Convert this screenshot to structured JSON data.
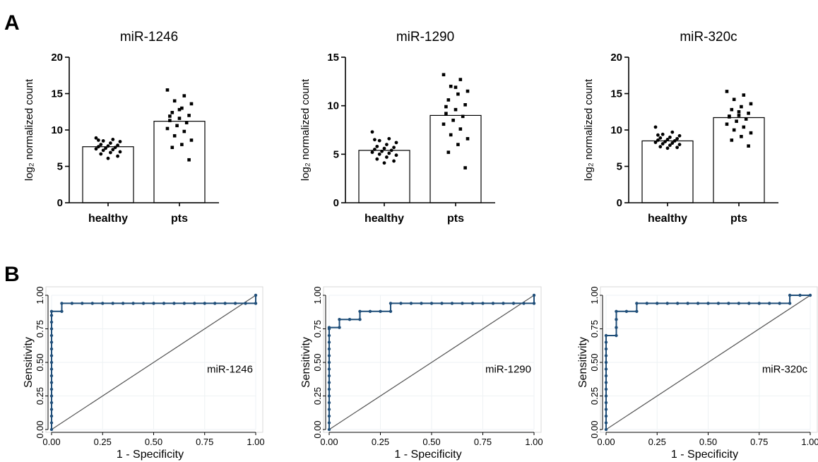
{
  "panel_labels": [
    "A",
    "B"
  ],
  "colors": {
    "roc_line": "#1f4e79",
    "bar_fill": "#ffffff",
    "axis": "#000000",
    "grid": "#eef2f4",
    "roc_border": "#d9d9d9"
  },
  "chart_data": [
    {
      "type": "bar",
      "panel": "A",
      "title": "miR-1246",
      "ylabel": "log₂ normalized count",
      "categories": [
        "healthy",
        "pts"
      ],
      "values": [
        7.7,
        11.2
      ],
      "ylim": [
        0,
        20
      ],
      "yticks": [
        0,
        5,
        10,
        15,
        20
      ],
      "points": [
        [
          8.9,
          8.7,
          8.5,
          8.4,
          8.2,
          8.0,
          7.9,
          7.8,
          7.7,
          7.6,
          7.5,
          7.4,
          7.3,
          7.2,
          7.0,
          6.9,
          6.7,
          6.4,
          6.1,
          8.6
        ],
        [
          15.5,
          14.7,
          14.0,
          13.6,
          13.0,
          12.4,
          12.0,
          11.6,
          11.3,
          11.0,
          10.6,
          10.2,
          9.8,
          9.2,
          8.6,
          8.0,
          7.6,
          5.9,
          12.8,
          11.9
        ]
      ]
    },
    {
      "type": "bar",
      "panel": "A",
      "title": "miR-1290",
      "ylabel": "log₂ normalized count",
      "categories": [
        "healthy",
        "pts"
      ],
      "values": [
        5.4,
        9.0
      ],
      "ylim": [
        0,
        15
      ],
      "yticks": [
        0,
        5,
        10,
        15
      ],
      "points": [
        [
          7.3,
          6.6,
          6.4,
          6.2,
          6.0,
          5.8,
          5.7,
          5.6,
          5.5,
          5.4,
          5.3,
          5.2,
          5.1,
          5.0,
          4.9,
          4.7,
          4.5,
          4.3,
          4.1,
          6.5
        ],
        [
          13.2,
          12.7,
          12.0,
          11.5,
          11.2,
          10.6,
          10.1,
          9.6,
          9.2,
          8.9,
          8.5,
          8.1,
          7.6,
          7.0,
          6.6,
          6.0,
          5.2,
          3.6,
          11.9,
          9.9
        ]
      ]
    },
    {
      "type": "bar",
      "panel": "A",
      "title": "miR-320c",
      "ylabel": "log₂ normalized count",
      "categories": [
        "healthy",
        "pts"
      ],
      "values": [
        8.5,
        11.7
      ],
      "ylim": [
        0,
        20
      ],
      "yticks": [
        0,
        5,
        10,
        15,
        20
      ],
      "points": [
        [
          10.4,
          9.7,
          9.4,
          9.2,
          9.0,
          8.9,
          8.8,
          8.7,
          8.6,
          8.5,
          8.4,
          8.3,
          8.2,
          8.1,
          8.0,
          7.9,
          7.7,
          7.6,
          7.5,
          9.3
        ],
        [
          15.3,
          14.8,
          14.2,
          13.6,
          13.2,
          12.8,
          12.3,
          12.0,
          11.8,
          11.5,
          11.2,
          10.8,
          10.4,
          10.0,
          9.6,
          9.1,
          8.6,
          7.8,
          12.5,
          11.9
        ]
      ]
    },
    {
      "type": "line",
      "panel": "B",
      "annotation": "miR-1246",
      "xlabel": "1 - Specificity",
      "ylabel": "Sensitivity",
      "xlim": [
        0,
        1
      ],
      "ylim": [
        0,
        1
      ],
      "xticks": [
        "0.00",
        "0.25",
        "0.50",
        "0.75",
        "1.00"
      ],
      "yticks": [
        "0.00",
        "0.25",
        "0.50",
        "0.75",
        "1.00"
      ],
      "roc": [
        [
          0,
          0
        ],
        [
          0,
          0.05
        ],
        [
          0,
          0.1
        ],
        [
          0,
          0.15
        ],
        [
          0,
          0.2
        ],
        [
          0,
          0.25
        ],
        [
          0,
          0.3
        ],
        [
          0,
          0.35
        ],
        [
          0,
          0.4
        ],
        [
          0,
          0.45
        ],
        [
          0,
          0.5
        ],
        [
          0,
          0.55
        ],
        [
          0,
          0.6
        ],
        [
          0,
          0.65
        ],
        [
          0,
          0.7
        ],
        [
          0,
          0.75
        ],
        [
          0,
          0.8
        ],
        [
          0,
          0.85
        ],
        [
          0,
          0.88
        ],
        [
          0.05,
          0.88
        ],
        [
          0.05,
          0.94
        ],
        [
          0.1,
          0.94
        ],
        [
          0.15,
          0.94
        ],
        [
          0.2,
          0.94
        ],
        [
          0.25,
          0.94
        ],
        [
          0.3,
          0.94
        ],
        [
          0.35,
          0.94
        ],
        [
          0.4,
          0.94
        ],
        [
          0.45,
          0.94
        ],
        [
          0.5,
          0.94
        ],
        [
          0.55,
          0.94
        ],
        [
          0.6,
          0.94
        ],
        [
          0.65,
          0.94
        ],
        [
          0.7,
          0.94
        ],
        [
          0.75,
          0.94
        ],
        [
          0.8,
          0.94
        ],
        [
          0.85,
          0.94
        ],
        [
          0.9,
          0.94
        ],
        [
          0.95,
          0.94
        ],
        [
          1,
          0.94
        ],
        [
          1,
          1
        ]
      ]
    },
    {
      "type": "line",
      "panel": "B",
      "annotation": "miR-1290",
      "xlabel": "1 - Specificity",
      "ylabel": "Sensitivity",
      "xlim": [
        0,
        1
      ],
      "ylim": [
        0,
        1
      ],
      "xticks": [
        "0.00",
        "0.25",
        "0.50",
        "0.75",
        "1.00"
      ],
      "yticks": [
        "0.00",
        "0.25",
        "0.50",
        "0.75",
        "1.00"
      ],
      "roc": [
        [
          0,
          0
        ],
        [
          0,
          0.05
        ],
        [
          0,
          0.1
        ],
        [
          0,
          0.15
        ],
        [
          0,
          0.2
        ],
        [
          0,
          0.25
        ],
        [
          0,
          0.3
        ],
        [
          0,
          0.35
        ],
        [
          0,
          0.4
        ],
        [
          0,
          0.45
        ],
        [
          0,
          0.5
        ],
        [
          0,
          0.55
        ],
        [
          0,
          0.6
        ],
        [
          0,
          0.65
        ],
        [
          0,
          0.7
        ],
        [
          0,
          0.75
        ],
        [
          0,
          0.76
        ],
        [
          0.05,
          0.76
        ],
        [
          0.05,
          0.82
        ],
        [
          0.1,
          0.82
        ],
        [
          0.15,
          0.82
        ],
        [
          0.15,
          0.88
        ],
        [
          0.2,
          0.88
        ],
        [
          0.25,
          0.88
        ],
        [
          0.3,
          0.88
        ],
        [
          0.3,
          0.94
        ],
        [
          0.35,
          0.94
        ],
        [
          0.4,
          0.94
        ],
        [
          0.45,
          0.94
        ],
        [
          0.5,
          0.94
        ],
        [
          0.55,
          0.94
        ],
        [
          0.6,
          0.94
        ],
        [
          0.65,
          0.94
        ],
        [
          0.7,
          0.94
        ],
        [
          0.75,
          0.94
        ],
        [
          0.8,
          0.94
        ],
        [
          0.85,
          0.94
        ],
        [
          0.9,
          0.94
        ],
        [
          0.95,
          0.94
        ],
        [
          1,
          0.94
        ],
        [
          1,
          1
        ]
      ]
    },
    {
      "type": "line",
      "panel": "B",
      "annotation": "miR-320c",
      "xlabel": "1 - Specificity",
      "ylabel": "Sensitivity",
      "xlim": [
        0,
        1
      ],
      "ylim": [
        0,
        1
      ],
      "xticks": [
        "0.00",
        "0.25",
        "0.50",
        "0.75",
        "1.00"
      ],
      "yticks": [
        "0.00",
        "0.25",
        "0.50",
        "0.75",
        "1.00"
      ],
      "roc": [
        [
          0,
          0
        ],
        [
          0,
          0.05
        ],
        [
          0,
          0.1
        ],
        [
          0,
          0.15
        ],
        [
          0,
          0.2
        ],
        [
          0,
          0.25
        ],
        [
          0,
          0.3
        ],
        [
          0,
          0.35
        ],
        [
          0,
          0.4
        ],
        [
          0,
          0.45
        ],
        [
          0,
          0.5
        ],
        [
          0,
          0.55
        ],
        [
          0,
          0.6
        ],
        [
          0,
          0.65
        ],
        [
          0,
          0.7
        ],
        [
          0.05,
          0.7
        ],
        [
          0.05,
          0.76
        ],
        [
          0.05,
          0.82
        ],
        [
          0.05,
          0.88
        ],
        [
          0.1,
          0.88
        ],
        [
          0.15,
          0.88
        ],
        [
          0.15,
          0.94
        ],
        [
          0.2,
          0.94
        ],
        [
          0.25,
          0.94
        ],
        [
          0.3,
          0.94
        ],
        [
          0.35,
          0.94
        ],
        [
          0.4,
          0.94
        ],
        [
          0.45,
          0.94
        ],
        [
          0.5,
          0.94
        ],
        [
          0.55,
          0.94
        ],
        [
          0.6,
          0.94
        ],
        [
          0.65,
          0.94
        ],
        [
          0.7,
          0.94
        ],
        [
          0.75,
          0.94
        ],
        [
          0.8,
          0.94
        ],
        [
          0.85,
          0.94
        ],
        [
          0.9,
          0.94
        ],
        [
          0.9,
          1
        ],
        [
          0.95,
          1
        ],
        [
          1,
          1
        ]
      ]
    }
  ]
}
